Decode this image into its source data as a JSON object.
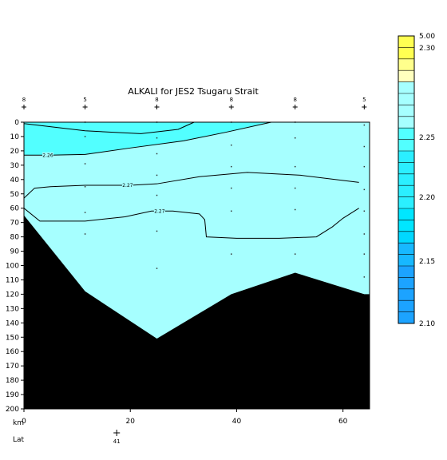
{
  "chart_data": {
    "type": "heatmap",
    "title": "ALKALI for JES2 Tsugaru Strait",
    "xlabel": "km",
    "lat_label": "Lat",
    "lat_marker": {
      "km": 20,
      "label": "41"
    },
    "xlim": [
      0,
      65
    ],
    "ylim": [
      0,
      200
    ],
    "x_ticks": [
      0,
      20,
      40,
      60
    ],
    "x_tick_labels": [
      "0",
      "20",
      "40",
      "60"
    ],
    "y_ticks": [
      0,
      10,
      20,
      30,
      40,
      50,
      60,
      70,
      80,
      90,
      100,
      110,
      120,
      130,
      140,
      150,
      160,
      170,
      180,
      190,
      200
    ],
    "stations": [
      {
        "km": 0,
        "label": "8"
      },
      {
        "km": 11.5,
        "label": "5"
      },
      {
        "km": 25,
        "label": "8"
      },
      {
        "km": 39,
        "label": "8"
      },
      {
        "km": 51,
        "label": "8"
      },
      {
        "km": 64,
        "label": "5"
      }
    ],
    "bottom_depth": [
      {
        "km": 0,
        "depth": 65
      },
      {
        "km": 11.5,
        "depth": 118
      },
      {
        "km": 25,
        "depth": 151
      },
      {
        "km": 39,
        "depth": 120
      },
      {
        "km": 51,
        "depth": 105
      },
      {
        "km": 64,
        "depth": 120
      }
    ],
    "sample_points": [
      {
        "km": 11.5,
        "depth": 0
      },
      {
        "km": 11.5,
        "depth": 10
      },
      {
        "km": 11.5,
        "depth": 29
      },
      {
        "km": 11.5,
        "depth": 45
      },
      {
        "km": 11.5,
        "depth": 63
      },
      {
        "km": 11.5,
        "depth": 78
      },
      {
        "km": 25,
        "depth": 0
      },
      {
        "km": 25,
        "depth": 11
      },
      {
        "km": 25,
        "depth": 22
      },
      {
        "km": 25,
        "depth": 37
      },
      {
        "km": 25,
        "depth": 51
      },
      {
        "km": 25,
        "depth": 76
      },
      {
        "km": 25,
        "depth": 102
      },
      {
        "km": 39,
        "depth": 0
      },
      {
        "km": 39,
        "depth": 16
      },
      {
        "km": 39,
        "depth": 31
      },
      {
        "km": 39,
        "depth": 46
      },
      {
        "km": 39,
        "depth": 62
      },
      {
        "km": 39,
        "depth": 92
      },
      {
        "km": 51,
        "depth": 0
      },
      {
        "km": 51,
        "depth": 11
      },
      {
        "km": 51,
        "depth": 31
      },
      {
        "km": 51,
        "depth": 46
      },
      {
        "km": 51,
        "depth": 61
      },
      {
        "km": 51,
        "depth": 92
      },
      {
        "km": 64,
        "depth": 2
      },
      {
        "km": 64,
        "depth": 17
      },
      {
        "km": 64,
        "depth": 31
      },
      {
        "km": 64,
        "depth": 47
      },
      {
        "km": 64,
        "depth": 62
      },
      {
        "km": 64,
        "depth": 78
      },
      {
        "km": 64,
        "depth": 92
      },
      {
        "km": 64,
        "depth": 108
      }
    ],
    "fill_regions": [
      {
        "value_range": "2.25-2.26",
        "color": "#52ffff",
        "boundary": [
          [
            0,
            0
          ],
          [
            46.5,
            0
          ],
          [
            38,
            7
          ],
          [
            30,
            13
          ],
          [
            20,
            18
          ],
          [
            11.5,
            22.5
          ],
          [
            5,
            23
          ],
          [
            0,
            23
          ]
        ]
      },
      {
        "value_range": "2.25-2.26",
        "color": "#52ffff",
        "boundary": [
          [
            0,
            0
          ],
          [
            32,
            0
          ],
          [
            29,
            5
          ],
          [
            22,
            8
          ],
          [
            11.5,
            6
          ],
          [
            0,
            1
          ]
        ]
      }
    ],
    "background_color": "#a6ffff",
    "land_color": "#000000",
    "contours": [
      {
        "level": "2.26",
        "points": [
          [
            0,
            1
          ],
          [
            11.5,
            6
          ],
          [
            22,
            8
          ],
          [
            29,
            5
          ],
          [
            32,
            0
          ]
        ]
      },
      {
        "level": "2.26",
        "points": [
          [
            0,
            23
          ],
          [
            5,
            23
          ],
          [
            11.5,
            22.5
          ],
          [
            20,
            18
          ],
          [
            30,
            13
          ],
          [
            38,
            7
          ],
          [
            46.5,
            0
          ]
        ]
      },
      {
        "level": "2.27",
        "points": [
          [
            0,
            53
          ],
          [
            2,
            46
          ],
          [
            5,
            45
          ],
          [
            11.5,
            44
          ],
          [
            20,
            44
          ],
          [
            25,
            43
          ],
          [
            33,
            38
          ],
          [
            42,
            35
          ],
          [
            52,
            37
          ],
          [
            63,
            42
          ]
        ]
      },
      {
        "level": "2.27",
        "points": [
          [
            0,
            60
          ],
          [
            3,
            69
          ],
          [
            11.5,
            69
          ],
          [
            19,
            66
          ],
          [
            24,
            62
          ],
          [
            28,
            62
          ],
          [
            33,
            64
          ],
          [
            34,
            68
          ],
          [
            34.3,
            80
          ],
          [
            40,
            81
          ],
          [
            48,
            81
          ],
          [
            55,
            80
          ],
          [
            58,
            73
          ],
          [
            60,
            67
          ],
          [
            63,
            60
          ]
        ]
      }
    ],
    "contour_labels": [
      {
        "text": "2.26",
        "km": 4.5,
        "depth": 23
      },
      {
        "text": "2.27",
        "km": 19.5,
        "depth": 44
      },
      {
        "text": "2.27",
        "km": 25.5,
        "depth": 62
      }
    ],
    "colorbar": {
      "labels": [
        "5.00",
        "2.30",
        "2.25",
        "2.20",
        "2.15",
        "2.10"
      ],
      "bands": [
        "#ffff52",
        "#ffff52",
        "#ffff8c",
        "#ffffbe",
        "#a6ffff",
        "#a6ffff",
        "#a6ffff",
        "#a6ffff",
        "#52ffff",
        "#52ffff",
        "#2befff",
        "#2befff",
        "#2befff",
        "#2befff",
        "#2befff",
        "#00e6ff",
        "#00e6ff",
        "#00d8ff",
        "#17b8ff",
        "#17b8ff",
        "#1ca3ff",
        "#1ca3ff",
        "#1ca3ff",
        "#1ca3ff",
        "#1ca3ff"
      ]
    }
  }
}
